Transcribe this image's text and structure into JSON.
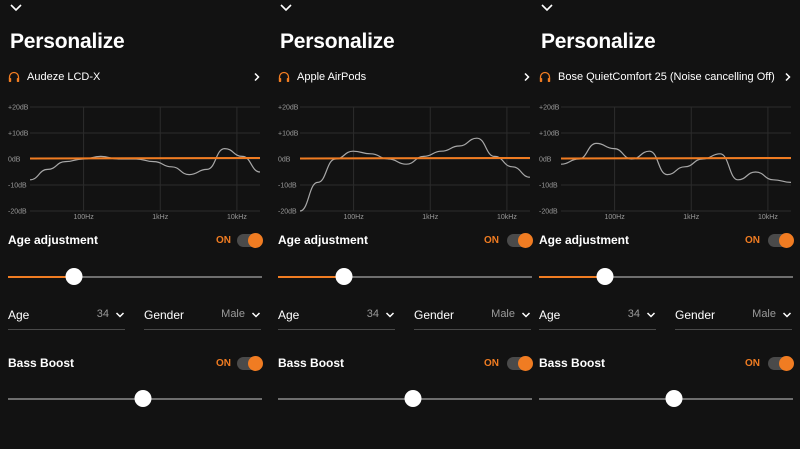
{
  "panels": [
    {
      "title": "Personalize",
      "device": "Audeze LCD-X",
      "age_adjustment": {
        "label": "Age adjustment",
        "state": "ON",
        "level": 0.26
      },
      "age": {
        "label": "Age",
        "value": "34"
      },
      "gender": {
        "label": "Gender",
        "value": "Male"
      },
      "bass_boost": {
        "label": "Bass Boost",
        "state": "ON",
        "level": 0.53
      },
      "response_db": [
        -8,
        -4,
        -1,
        0,
        1,
        0,
        0,
        -1,
        -3,
        -6,
        -4,
        4,
        1,
        -5
      ]
    },
    {
      "title": "Personalize",
      "device": "Apple AirPods",
      "age_adjustment": {
        "label": "Age adjustment",
        "state": "ON",
        "level": 0.26
      },
      "age": {
        "label": "Age",
        "value": "34"
      },
      "gender": {
        "label": "Gender",
        "value": "Male"
      },
      "bass_boost": {
        "label": "Bass Boost",
        "state": "ON",
        "level": 0.53
      },
      "response_db": [
        -20,
        -9,
        0,
        3,
        2,
        0,
        -2,
        1,
        3,
        5,
        8,
        1,
        -3,
        -7
      ]
    },
    {
      "title": "Personalize",
      "device": "Bose QuietComfort 25 (Noise cancelling Off)",
      "age_adjustment": {
        "label": "Age adjustment",
        "state": "ON",
        "level": 0.26
      },
      "age": {
        "label": "Age",
        "value": "34"
      },
      "gender": {
        "label": "Gender",
        "value": "Male"
      },
      "bass_boost": {
        "label": "Bass Boost",
        "state": "ON",
        "level": 0.53
      },
      "response_db": [
        -2,
        0,
        6,
        4,
        0,
        3,
        -6,
        -3,
        0,
        2,
        -8,
        -5,
        -8,
        -9
      ]
    }
  ],
  "graph": {
    "y_ticks": [
      "+20dB",
      "+10dB",
      "0dB",
      "-10dB",
      "-20dB"
    ],
    "x_ticks": [
      "100Hz",
      "1kHz",
      "10kHz"
    ]
  },
  "colors": {
    "accent": "#f07c22",
    "background": "#121212",
    "curve": "#a8a8a8"
  }
}
